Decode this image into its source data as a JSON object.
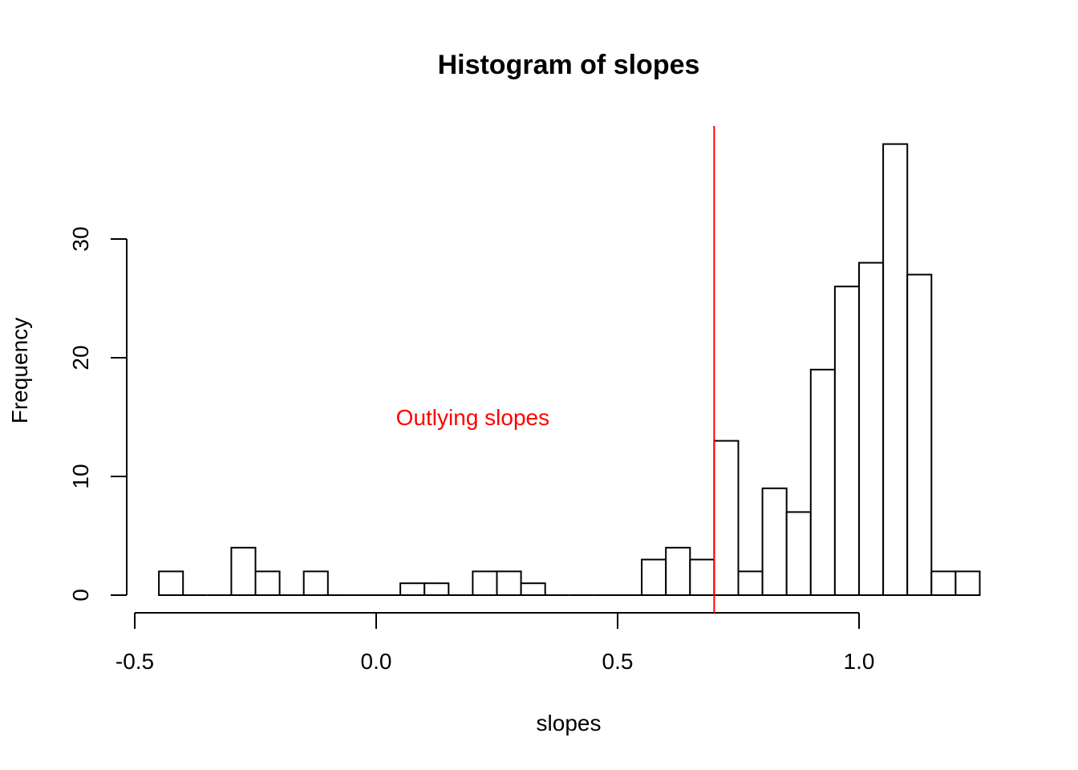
{
  "chart_data": {
    "type": "bar",
    "title": "Histogram of slopes",
    "xlabel": "slopes",
    "ylabel": "Frequency",
    "bin_width": 0.05,
    "bins": [
      {
        "x0": -0.45,
        "x1": -0.4,
        "count": 2
      },
      {
        "x0": -0.4,
        "x1": -0.35,
        "count": 0
      },
      {
        "x0": -0.35,
        "x1": -0.3,
        "count": 0
      },
      {
        "x0": -0.3,
        "x1": -0.25,
        "count": 4
      },
      {
        "x0": -0.25,
        "x1": -0.2,
        "count": 2
      },
      {
        "x0": -0.2,
        "x1": -0.15,
        "count": 0
      },
      {
        "x0": -0.15,
        "x1": -0.1,
        "count": 2
      },
      {
        "x0": -0.1,
        "x1": -0.05,
        "count": 0
      },
      {
        "x0": -0.05,
        "x1": 0.0,
        "count": 0
      },
      {
        "x0": 0.0,
        "x1": 0.05,
        "count": 0
      },
      {
        "x0": 0.05,
        "x1": 0.1,
        "count": 1
      },
      {
        "x0": 0.1,
        "x1": 0.15,
        "count": 1
      },
      {
        "x0": 0.15,
        "x1": 0.2,
        "count": 0
      },
      {
        "x0": 0.2,
        "x1": 0.25,
        "count": 2
      },
      {
        "x0": 0.25,
        "x1": 0.3,
        "count": 2
      },
      {
        "x0": 0.3,
        "x1": 0.35,
        "count": 1
      },
      {
        "x0": 0.35,
        "x1": 0.4,
        "count": 0
      },
      {
        "x0": 0.4,
        "x1": 0.45,
        "count": 0
      },
      {
        "x0": 0.45,
        "x1": 0.5,
        "count": 0
      },
      {
        "x0": 0.5,
        "x1": 0.55,
        "count": 0
      },
      {
        "x0": 0.55,
        "x1": 0.6,
        "count": 3
      },
      {
        "x0": 0.6,
        "x1": 0.65,
        "count": 4
      },
      {
        "x0": 0.65,
        "x1": 0.7,
        "count": 3
      },
      {
        "x0": 0.7,
        "x1": 0.75,
        "count": 13
      },
      {
        "x0": 0.75,
        "x1": 0.8,
        "count": 2
      },
      {
        "x0": 0.8,
        "x1": 0.85,
        "count": 9
      },
      {
        "x0": 0.85,
        "x1": 0.9,
        "count": 7
      },
      {
        "x0": 0.9,
        "x1": 0.95,
        "count": 19
      },
      {
        "x0": 0.95,
        "x1": 1.0,
        "count": 26
      },
      {
        "x0": 1.0,
        "x1": 1.05,
        "count": 28
      },
      {
        "x0": 1.05,
        "x1": 1.1,
        "count": 38
      },
      {
        "x0": 1.1,
        "x1": 1.15,
        "count": 27
      },
      {
        "x0": 1.15,
        "x1": 1.2,
        "count": 2
      },
      {
        "x0": 1.2,
        "x1": 1.25,
        "count": 2
      }
    ],
    "x_ticks": [
      {
        "value": -0.5,
        "label": "-0.5"
      },
      {
        "value": 0.0,
        "label": "0.0"
      },
      {
        "value": 0.5,
        "label": "0.5"
      },
      {
        "value": 1.0,
        "label": "1.0"
      }
    ],
    "y_ticks": [
      {
        "value": 0,
        "label": "0"
      },
      {
        "value": 10,
        "label": "10"
      },
      {
        "value": 20,
        "label": "20"
      },
      {
        "value": 30,
        "label": "30"
      }
    ],
    "xlim": [
      -0.5,
      1.25
    ],
    "ylim": [
      0,
      40
    ],
    "grid": false,
    "threshold_line": {
      "x": 0.7,
      "color": "#ff0000"
    },
    "annotation": {
      "text": "Outlying slopes",
      "x": 0.2,
      "y": 15,
      "color": "#ff0000"
    },
    "bar_fill": "#ffffff",
    "bar_stroke": "#000000"
  }
}
